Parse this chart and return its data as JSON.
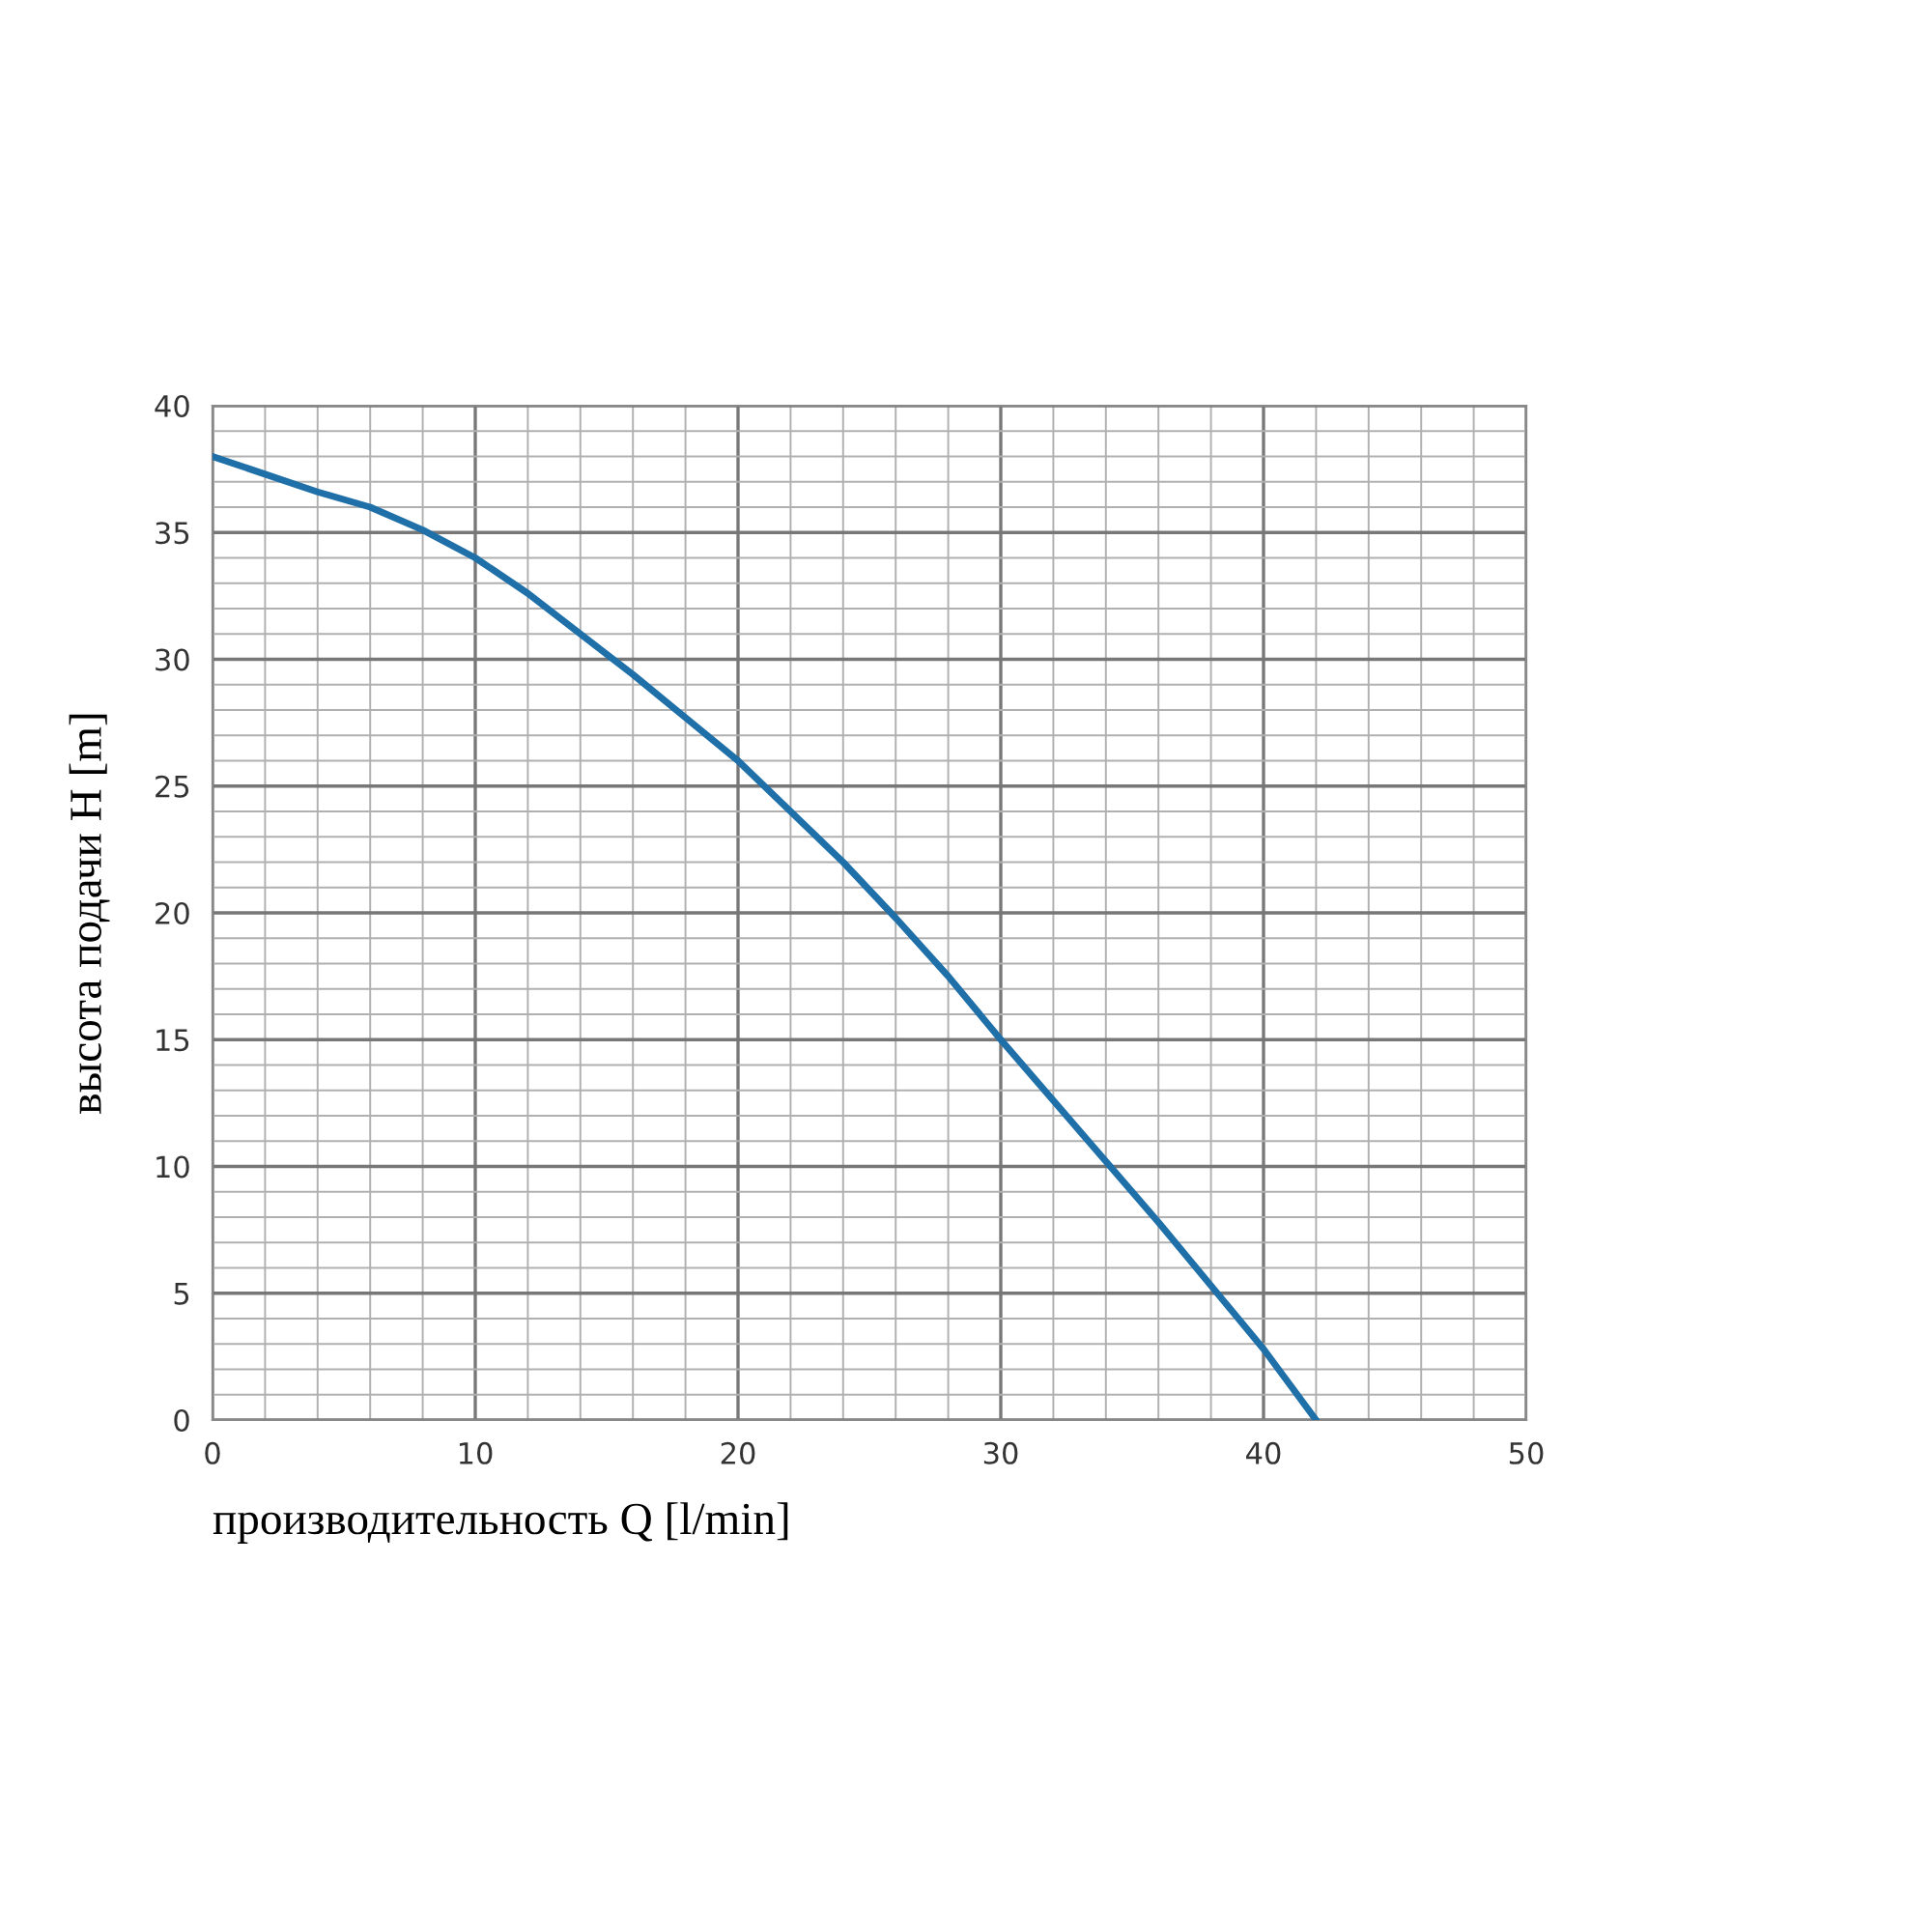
{
  "chart_data": {
    "type": "line",
    "xlabel": "производительность Q [l/min]",
    "ylabel": "высота подачи H [m]",
    "series": [
      {
        "color": "#1f6fa8",
        "x": [
          0,
          2,
          4,
          6,
          8,
          10,
          12,
          14,
          16,
          18,
          20,
          22,
          24,
          26,
          28,
          30,
          32,
          34,
          36,
          38,
          40,
          41,
          42
        ],
        "values": [
          38,
          37.3,
          36.6,
          36,
          35.1,
          34,
          32.6,
          31,
          29.4,
          27.7,
          26,
          24,
          22,
          19.8,
          17.5,
          15,
          12.6,
          10.2,
          7.8,
          5.3,
          2.8,
          1.4,
          0
        ]
      }
    ],
    "xlim": [
      0,
      50
    ],
    "ylim": [
      0,
      40
    ],
    "xticks": [
      0,
      {
        "value": 2,
        "label": null
      },
      {
        "value": 4,
        "label": null
      },
      {
        "value": 6,
        "label": null
      },
      {
        "value": 8,
        "label": null
      },
      10,
      {
        "value": 12,
        "label": null
      },
      {
        "value": 14,
        "label": null
      },
      {
        "value": 16,
        "label": null
      },
      {
        "value": 18,
        "label": null
      },
      20,
      {
        "value": 22,
        "label": null
      },
      {
        "value": 24,
        "label": null
      },
      {
        "value": 26,
        "label": null
      },
      {
        "value": 28,
        "label": null
      },
      30,
      {
        "value": 32,
        "label": null
      },
      {
        "value": 34,
        "label": null
      },
      {
        "value": 36,
        "label": null
      },
      {
        "value": 38,
        "label": null
      },
      40,
      {
        "value": 42,
        "label": null
      },
      {
        "value": 44,
        "label": null
      },
      {
        "value": 46,
        "label": null
      },
      {
        "value": 48,
        "label": null
      },
      50
    ],
    "yticks": [
      0,
      {
        "value": 1,
        "label": null
      },
      {
        "value": 2,
        "label": null
      },
      {
        "value": 3,
        "label": null
      },
      {
        "value": 4,
        "label": null
      },
      5,
      {
        "value": 6,
        "label": null
      },
      {
        "value": 7,
        "label": null
      },
      {
        "value": 8,
        "label": null
      },
      {
        "value": 9,
        "label": null
      },
      10,
      {
        "value": 11,
        "label": null
      },
      {
        "value": 12,
        "label": null
      },
      {
        "value": 13,
        "label": null
      },
      {
        "value": 14,
        "label": null
      },
      15,
      {
        "value": 16,
        "label": null
      },
      {
        "value": 17,
        "label": null
      },
      {
        "value": 18,
        "label": null
      },
      {
        "value": 19,
        "label": null
      },
      20,
      {
        "value": 21,
        "label": null
      },
      {
        "value": 22,
        "label": null
      },
      {
        "value": 23,
        "label": null
      },
      {
        "value": 24,
        "label": null
      },
      25,
      {
        "value": 26,
        "label": null
      },
      {
        "value": 27,
        "label": null
      },
      {
        "value": 28,
        "label": null
      },
      {
        "value": 29,
        "label": null
      },
      30,
      {
        "value": 31,
        "label": null
      },
      {
        "value": 32,
        "label": null
      },
      {
        "value": 33,
        "label": null
      },
      {
        "value": 34,
        "label": null
      },
      35,
      {
        "value": 36,
        "label": null
      },
      {
        "value": 37,
        "label": null
      },
      {
        "value": 38,
        "label": null
      },
      {
        "value": 39,
        "label": null
      },
      40
    ],
    "grid": true,
    "line_style": "solid",
    "marker": "none"
  }
}
